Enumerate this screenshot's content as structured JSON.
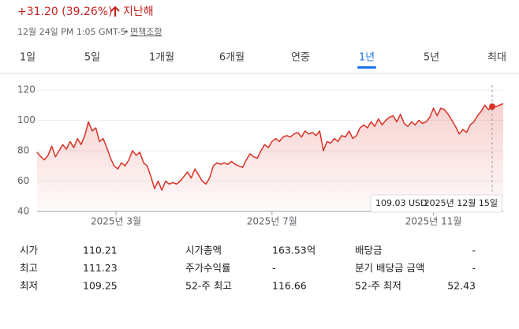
{
  "header": {
    "change": "+31.20 (39.26%)",
    "period": "지난해",
    "timestamp": "12월 24일 PM 1:05 GMT-5",
    "separator": "•",
    "disclaimer": "면책조항"
  },
  "tabs": [
    "1일",
    "5일",
    "1개월",
    "6개월",
    "연중",
    "1년",
    "5년",
    "최대"
  ],
  "selected_tab": "1년",
  "chart_data": {
    "type": "line",
    "color": "#d93025",
    "values": [
      79,
      76,
      74,
      77,
      83,
      76,
      80,
      84,
      81,
      86,
      82,
      88,
      84,
      90,
      99,
      93,
      95,
      86,
      88,
      82,
      75,
      70,
      68,
      72,
      70,
      74,
      80,
      77,
      79,
      72,
      70,
      63,
      55,
      60,
      54,
      60,
      58,
      59,
      58,
      60,
      63,
      66,
      62,
      68,
      64,
      60,
      58,
      62,
      70,
      72,
      71,
      72,
      71,
      73,
      71,
      70,
      69,
      74,
      78,
      76,
      75,
      80,
      84,
      82,
      86,
      88,
      86,
      89,
      90,
      89,
      91,
      92,
      89,
      93,
      91,
      92,
      90,
      93,
      80,
      86,
      85,
      88,
      86,
      90,
      89,
      93,
      88,
      90,
      95,
      97,
      95,
      99,
      96,
      101,
      97,
      100,
      102,
      103,
      99,
      104,
      98,
      96,
      99,
      97,
      100,
      98,
      99,
      102,
      108,
      103,
      108,
      107,
      104,
      100,
      96,
      91,
      94,
      92,
      97,
      99,
      103,
      106,
      110,
      107,
      109.03,
      109,
      110,
      111
    ],
    "xlim": [
      0,
      127
    ],
    "xticks": [
      {
        "value": 21.5,
        "label": "2025년 3월"
      },
      {
        "value": 64,
        "label": "2025년 7월"
      },
      {
        "value": 108,
        "label": "2025년 11월"
      }
    ],
    "ylim": [
      40,
      120
    ],
    "yticks": [
      40,
      60,
      80,
      100,
      120
    ],
    "grid": true,
    "tooltip": {
      "value": 109.03,
      "value_label": "109.03 USD",
      "date": "2025년 12월 15일"
    }
  },
  "stats": [
    [
      "시가",
      "110.21",
      "시가총액",
      "163.53억",
      "배당금",
      "-"
    ],
    [
      "최고",
      "111.23",
      "주가수익률",
      "-",
      "분기 배당금 금액",
      "-"
    ],
    [
      "최저",
      "109.25",
      "52-주 최고",
      "116.66",
      "52-주 최저",
      "52.43"
    ]
  ]
}
